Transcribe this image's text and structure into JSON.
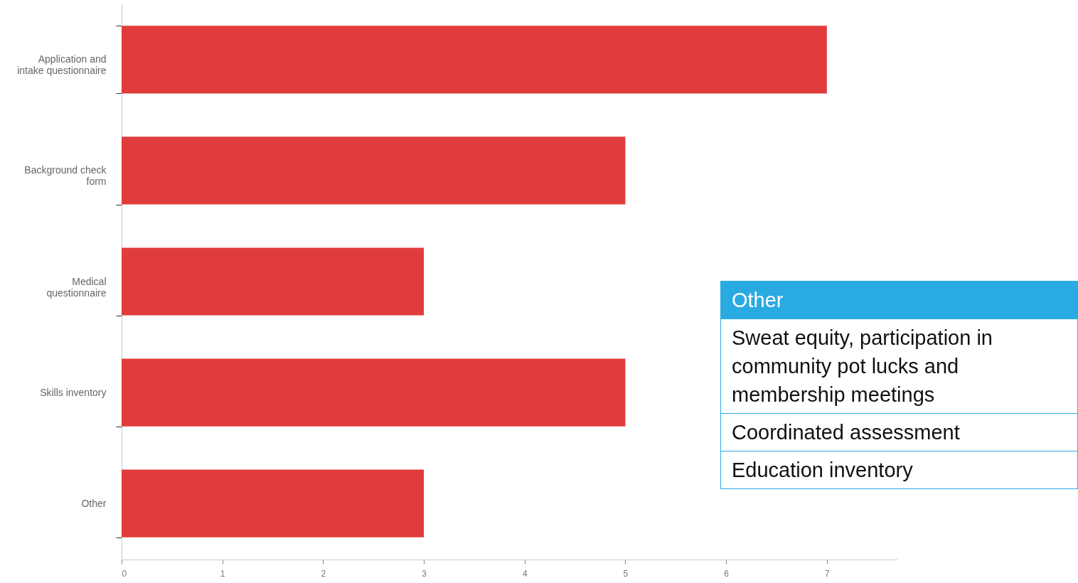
{
  "chart_data": {
    "type": "bar",
    "orientation": "horizontal",
    "categories": [
      "Application and intake questionnaire",
      "Background check form",
      "Medical questionnaire",
      "Skills inventory",
      "Other"
    ],
    "values": [
      7,
      5,
      3,
      5,
      3
    ],
    "color": "#e03c3c",
    "xlim": [
      0,
      7.7
    ],
    "xticks": [
      0,
      1,
      2,
      3,
      4,
      5,
      6,
      7
    ],
    "grid": false,
    "annotations": [
      "Other",
      "Sweat equity, participation in community pot lucks and membership meetings",
      "Coordinated assessment",
      "Education inventory"
    ]
  }
}
